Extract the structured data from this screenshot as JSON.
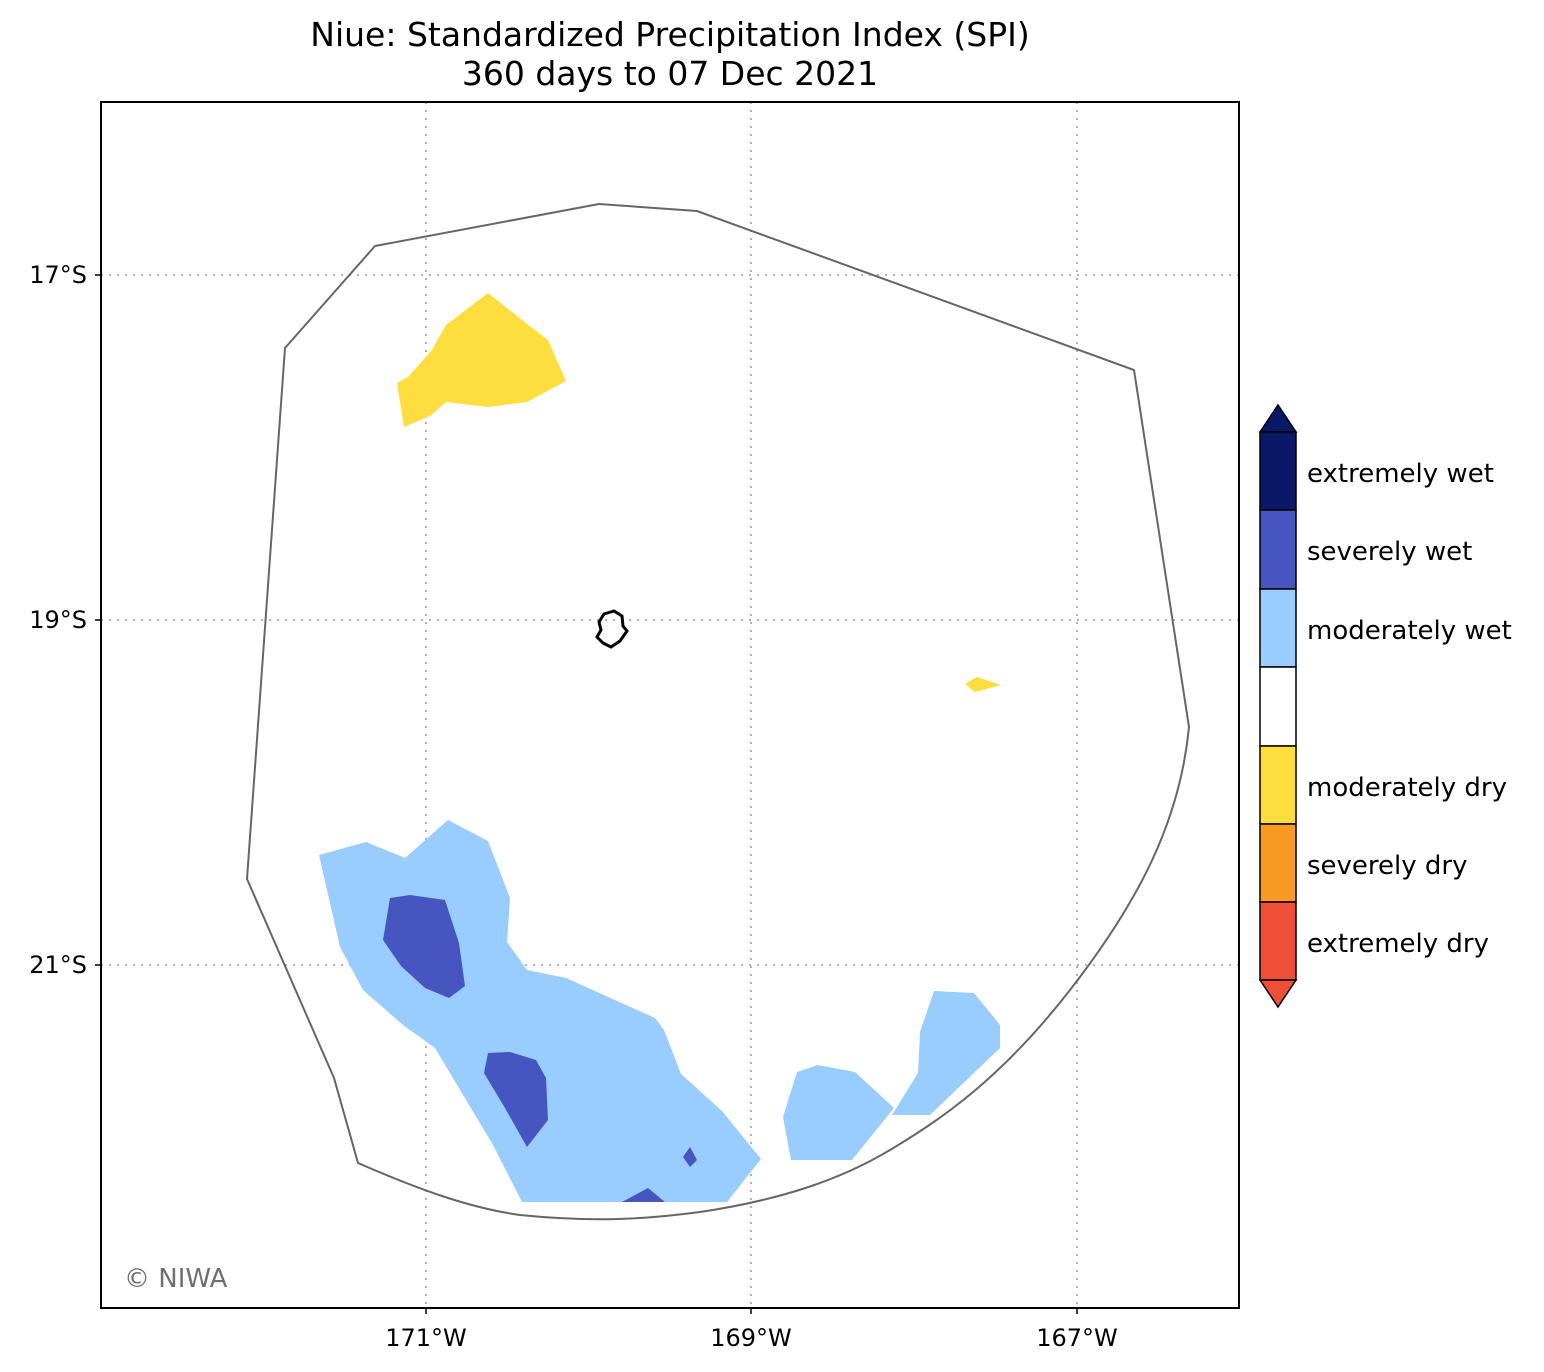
{
  "title": "Niue: Standardized Precipitation Index (SPI)",
  "subtitle": "360 days to 07 Dec 2021",
  "map": {
    "lat_ticks": [
      "17°S",
      "19°S",
      "21°S"
    ],
    "lon_ticks": [
      "171°W",
      "169°W",
      "167°W"
    ],
    "gridlines": "dotted",
    "credit": "© NIWA"
  },
  "legend": {
    "placement": "right",
    "categories": [
      {
        "label": "extremely wet",
        "color": "#0a1868"
      },
      {
        "label": "severely wet",
        "color": "#4655c0"
      },
      {
        "label": "moderately wet",
        "color": "#99ccff"
      },
      {
        "label": "",
        "color": "#ffffff"
      },
      {
        "label": "moderately dry",
        "color": "#fedd3f"
      },
      {
        "label": "severely dry",
        "color": "#f99b21"
      },
      {
        "label": "extremely dry",
        "color": "#ef4e37"
      }
    ]
  },
  "colors": {
    "boundary": "#666666",
    "island": "#000000",
    "grid": "#b0b0b0"
  }
}
